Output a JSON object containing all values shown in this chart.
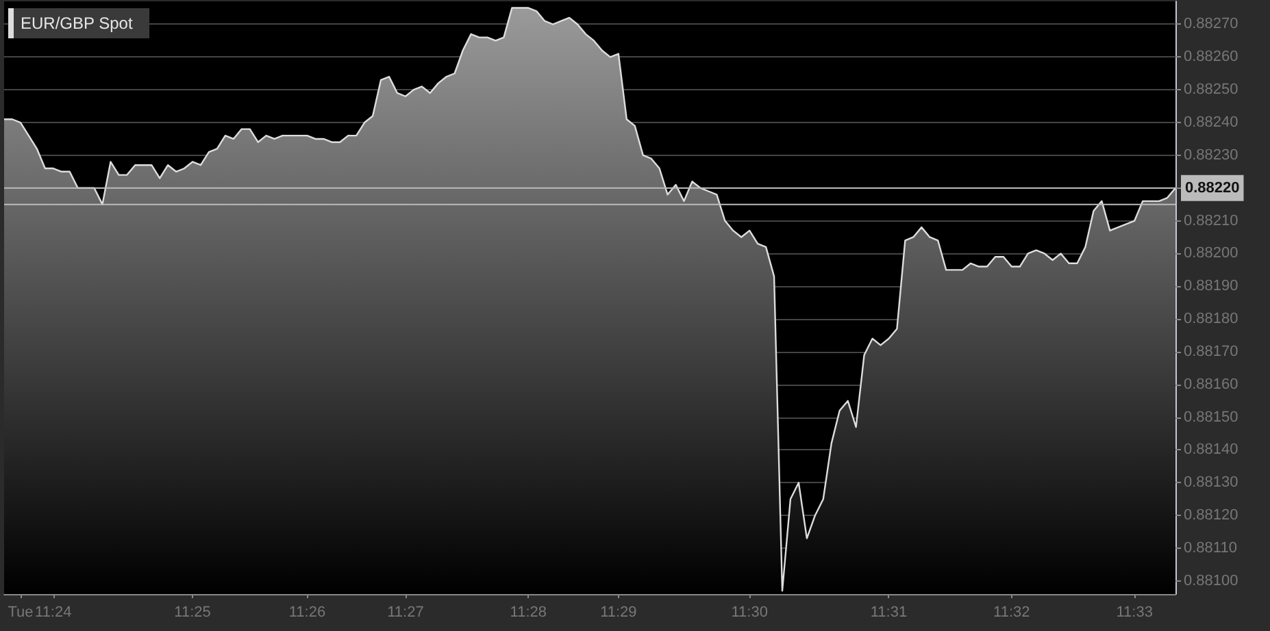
{
  "chart_data": {
    "type": "area",
    "categories": [
      null,
      null,
      "Tue",
      null,
      null,
      null,
      "11:24",
      null,
      null,
      null,
      null,
      null,
      null,
      null,
      null,
      null,
      null,
      null,
      null,
      null,
      null,
      null,
      null,
      "11:25",
      null,
      null,
      null,
      null,
      null,
      null,
      null,
      null,
      null,
      null,
      null,
      null,
      null,
      "11:26",
      null,
      null,
      null,
      null,
      null,
      null,
      null,
      null,
      null,
      null,
      null,
      "11:27",
      null,
      null,
      null,
      null,
      null,
      null,
      null,
      null,
      null,
      null,
      null,
      null,
      null,
      null,
      "11:28",
      null,
      null,
      null,
      null,
      null,
      null,
      null,
      null,
      null,
      null,
      "11:29",
      null,
      null,
      null,
      null,
      null,
      null,
      null,
      null,
      null,
      null,
      null,
      null,
      null,
      null,
      null,
      "11:30",
      null,
      null,
      null,
      null,
      null,
      null,
      null,
      null,
      null,
      null,
      null,
      null,
      null,
      null,
      null,
      null,
      "11:31",
      null,
      null,
      null,
      null,
      null,
      null,
      null,
      null,
      null,
      null,
      null,
      null,
      null,
      null,
      "11:32",
      null,
      null,
      null,
      null,
      null,
      null,
      null,
      null,
      null,
      null,
      null,
      null,
      null,
      null,
      "11:33",
      null,
      null,
      null,
      null,
      null
    ],
    "series": [
      {
        "name": "EUR/GBP Spot",
        "color": "#dddddd",
        "values": [
          0.88241,
          0.88241,
          0.8824,
          0.88236,
          0.88232,
          0.88226,
          0.88226,
          0.88225,
          0.88225,
          0.8822,
          0.8822,
          0.8822,
          0.88215,
          0.88228,
          0.88224,
          0.88224,
          0.88227,
          0.88227,
          0.88227,
          0.88223,
          0.88227,
          0.88225,
          0.88226,
          0.88228,
          0.88227,
          0.88231,
          0.88232,
          0.88236,
          0.88235,
          0.88238,
          0.88238,
          0.88234,
          0.88236,
          0.88235,
          0.88236,
          0.88236,
          0.88236,
          0.88236,
          0.88235,
          0.88235,
          0.88234,
          0.88234,
          0.88236,
          0.88236,
          0.8824,
          0.88242,
          0.88253,
          0.88254,
          0.88249,
          0.88248,
          0.8825,
          0.88251,
          0.88249,
          0.88252,
          0.88254,
          0.88255,
          0.88262,
          0.88267,
          0.88266,
          0.88266,
          0.88265,
          0.88266,
          0.88275,
          0.88275,
          0.88275,
          0.88274,
          0.88271,
          0.8827,
          0.88271,
          0.88272,
          0.8827,
          0.88267,
          0.88265,
          0.88262,
          0.8826,
          0.88261,
          0.88241,
          0.88239,
          0.8823,
          0.88229,
          0.88226,
          0.88218,
          0.88221,
          0.88216,
          0.88222,
          0.8822,
          0.88219,
          0.88218,
          0.8821,
          0.88207,
          0.88205,
          0.88207,
          0.88203,
          0.88202,
          0.88193,
          0.88097,
          0.88125,
          0.8813,
          0.88113,
          0.8812,
          0.88125,
          0.88142,
          0.88152,
          0.88155,
          0.88147,
          0.88169,
          0.88174,
          0.88172,
          0.88174,
          0.88177,
          0.88204,
          0.88205,
          0.88208,
          0.88205,
          0.88204,
          0.88195,
          0.88195,
          0.88195,
          0.88197,
          0.88196,
          0.88196,
          0.88199,
          0.88199,
          0.88196,
          0.88196,
          0.882,
          0.88201,
          0.882,
          0.88198,
          0.882,
          0.88197,
          0.88197,
          0.88202,
          0.88213,
          0.88216,
          0.88207,
          0.88208,
          0.88209,
          0.8821,
          0.88216,
          0.88216,
          0.88216,
          0.88217,
          0.8822
        ]
      }
    ],
    "ylim": [
      0.88096,
      0.88277
    ],
    "yticks": [
      {
        "value": 0.881,
        "label": "0.88100"
      },
      {
        "value": 0.8811,
        "label": "0.88110"
      },
      {
        "value": 0.8812,
        "label": "0.88120"
      },
      {
        "value": 0.8813,
        "label": "0.88130"
      },
      {
        "value": 0.8814,
        "label": "0.88140"
      },
      {
        "value": 0.8815,
        "label": "0.88150"
      },
      {
        "value": 0.8816,
        "label": "0.88160"
      },
      {
        "value": 0.8817,
        "label": "0.88170"
      },
      {
        "value": 0.8818,
        "label": "0.88180"
      },
      {
        "value": 0.8819,
        "label": "0.88190"
      },
      {
        "value": 0.882,
        "label": "0.88200"
      },
      {
        "value": 0.8821,
        "label": "0.88210"
      },
      {
        "value": 0.8822,
        "label": "0.88220"
      },
      {
        "value": 0.8823,
        "label": "0.88230"
      },
      {
        "value": 0.8824,
        "label": "0.88240"
      },
      {
        "value": 0.8825,
        "label": "0.88250"
      },
      {
        "value": 0.8826,
        "label": "0.88260"
      },
      {
        "value": 0.8827,
        "label": "0.88270"
      }
    ],
    "ref_lines": [
      {
        "axis": "y",
        "value": 0.8822,
        "label": "0.88220",
        "color": "#bbbbbb"
      },
      {
        "axis": "y",
        "value": 0.88215,
        "color": "#bbbbbb"
      }
    ],
    "grid": "y",
    "legend": "top left",
    "marker": "none",
    "line_style": "solid"
  }
}
